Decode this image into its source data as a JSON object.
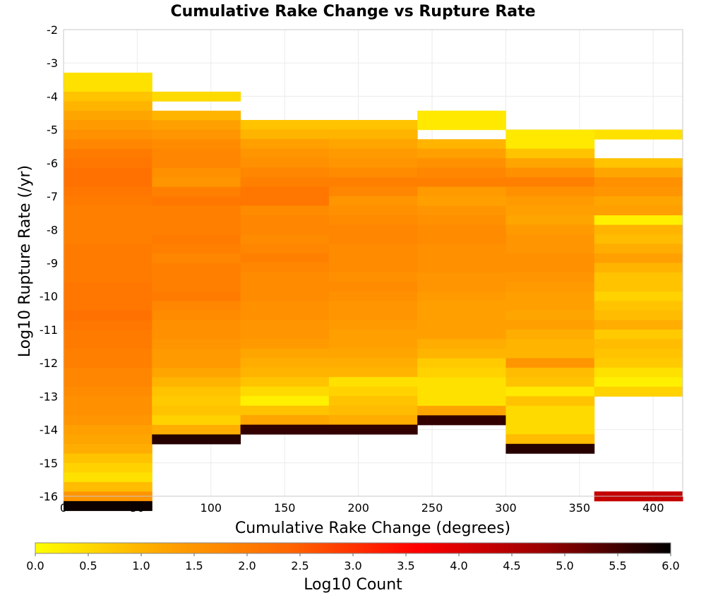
{
  "chart_data": {
    "type": "heatmap",
    "title": "Cumulative Rake Change vs Rupture Rate",
    "xlabel": "Cumulative Rake Change (degrees)",
    "ylabel": "Log10 Rupture Rate (/yr)",
    "xlim": [
      0,
      420
    ],
    "ylim": [
      -16,
      -2
    ],
    "xticks": [
      "0",
      "50",
      "100",
      "150",
      "200",
      "250",
      "300",
      "350",
      "400"
    ],
    "yticks": [
      "-2",
      "-3",
      "-4",
      "-5",
      "-6",
      "-7",
      "-8",
      "-9",
      "-10",
      "-11",
      "-12",
      "-13",
      "-14",
      "-15",
      "-16"
    ],
    "grid": true,
    "colorbar": {
      "label": "Log10 Count",
      "range": [
        0,
        6
      ],
      "ticks": [
        "0.0",
        "0.5",
        "1.0",
        "1.5",
        "2.0",
        "2.5",
        "3.0",
        "3.5",
        "4.0",
        "4.5",
        "5.0",
        "5.5",
        "6.0"
      ],
      "colors": [
        "#ffff00",
        "#ffa500",
        "#ff6600",
        "#ff0000",
        "#990000",
        "#000000"
      ]
    },
    "bin_width_x": 60,
    "bin_height_y": 0.2857,
    "columns": [
      {
        "x_start": 0,
        "y_top": -3.29,
        "values": [
          0.4,
          0.4,
          0.8,
          1.0,
          1.2,
          1.4,
          1.6,
          1.8,
          2.0,
          2.1,
          2.2,
          2.2,
          2.1,
          2.0,
          1.9,
          1.9,
          1.9,
          1.9,
          2.0,
          2.0,
          2.0,
          2.0,
          2.1,
          2.1,
          2.1,
          2.2,
          2.1,
          2.0,
          2.0,
          1.9,
          1.9,
          1.8,
          1.8,
          1.7,
          1.6,
          1.6,
          1.5,
          1.3,
          1.2,
          1.1,
          0.8,
          0.6,
          0.4,
          0.9,
          1.5,
          5.9
        ]
      },
      {
        "x_start": 60,
        "y_top": -3.86,
        "values": [
          0.5,
          null,
          1.0,
          1.3,
          1.5,
          1.7,
          1.8,
          1.8,
          1.6,
          1.5,
          1.9,
          2.1,
          1.9,
          1.9,
          1.9,
          2.0,
          1.9,
          1.8,
          1.9,
          1.9,
          1.9,
          2.0,
          1.8,
          1.7,
          1.6,
          1.6,
          1.5,
          1.4,
          1.4,
          1.2,
          1.0,
          0.8,
          0.7,
          0.8,
          0.6,
          1.1,
          5.7
        ]
      },
      {
        "x_start": 120,
        "y_top": -4.71,
        "values": [
          0.8,
          1.0,
          1.3,
          1.5,
          1.6,
          1.8,
          1.9,
          2.1,
          2.1,
          1.7,
          1.8,
          1.8,
          1.7,
          1.8,
          1.9,
          1.8,
          1.7,
          1.7,
          1.7,
          1.6,
          1.6,
          1.5,
          1.5,
          1.4,
          1.2,
          1.1,
          1.0,
          0.8,
          0.5,
          0.2,
          0.8,
          1.2,
          5.6
        ]
      },
      {
        "x_start": 180,
        "y_top": -4.71,
        "values": [
          0.8,
          1.0,
          1.2,
          1.4,
          1.5,
          1.7,
          1.9,
          1.8,
          1.5,
          1.6,
          1.7,
          1.8,
          1.8,
          1.7,
          1.7,
          1.7,
          1.6,
          1.7,
          1.6,
          1.5,
          1.5,
          1.4,
          1.3,
          1.3,
          1.2,
          1.1,
          1.0,
          0.4,
          0.6,
          0.8,
          0.9,
          1.1,
          5.6
        ]
      },
      {
        "x_start": 240,
        "y_top": -4.43,
        "values": [
          0.3,
          0.3,
          null,
          1.0,
          1.3,
          1.6,
          1.8,
          1.9,
          1.4,
          1.3,
          1.5,
          1.6,
          1.7,
          1.7,
          1.6,
          1.6,
          1.6,
          1.5,
          1.5,
          1.4,
          1.3,
          1.3,
          1.3,
          1.3,
          1.1,
          1.0,
          0.7,
          0.6,
          0.4,
          0.4,
          0.4,
          1.2,
          5.6
        ]
      },
      {
        "x_start": 300,
        "y_top": -5.0,
        "values": [
          0.3,
          0.3,
          0.8,
          1.2,
          1.6,
          1.9,
          1.6,
          1.4,
          1.3,
          1.2,
          1.4,
          1.5,
          1.5,
          1.6,
          1.6,
          1.5,
          1.4,
          1.3,
          1.3,
          1.2,
          1.3,
          1.1,
          1.0,
          1.0,
          1.5,
          0.9,
          0.8,
          0.3,
          0.8,
          0.5,
          0.5,
          0.5,
          0.9,
          5.7
        ]
      },
      {
        "x_start": 360,
        "y_top": -5.0,
        "values": [
          0.4,
          null,
          null,
          0.8,
          1.2,
          1.6,
          1.5,
          1.2,
          1.3,
          0.2,
          1.0,
          0.9,
          1.1,
          1.3,
          1.0,
          0.8,
          0.8,
          0.6,
          0.8,
          0.9,
          1.1,
          0.7,
          0.9,
          0.8,
          0.7,
          0.4,
          0.2,
          0.6,
          null,
          null,
          null,
          null,
          null,
          null,
          null,
          null,
          null,
          null,
          4.3
        ]
      }
    ]
  }
}
